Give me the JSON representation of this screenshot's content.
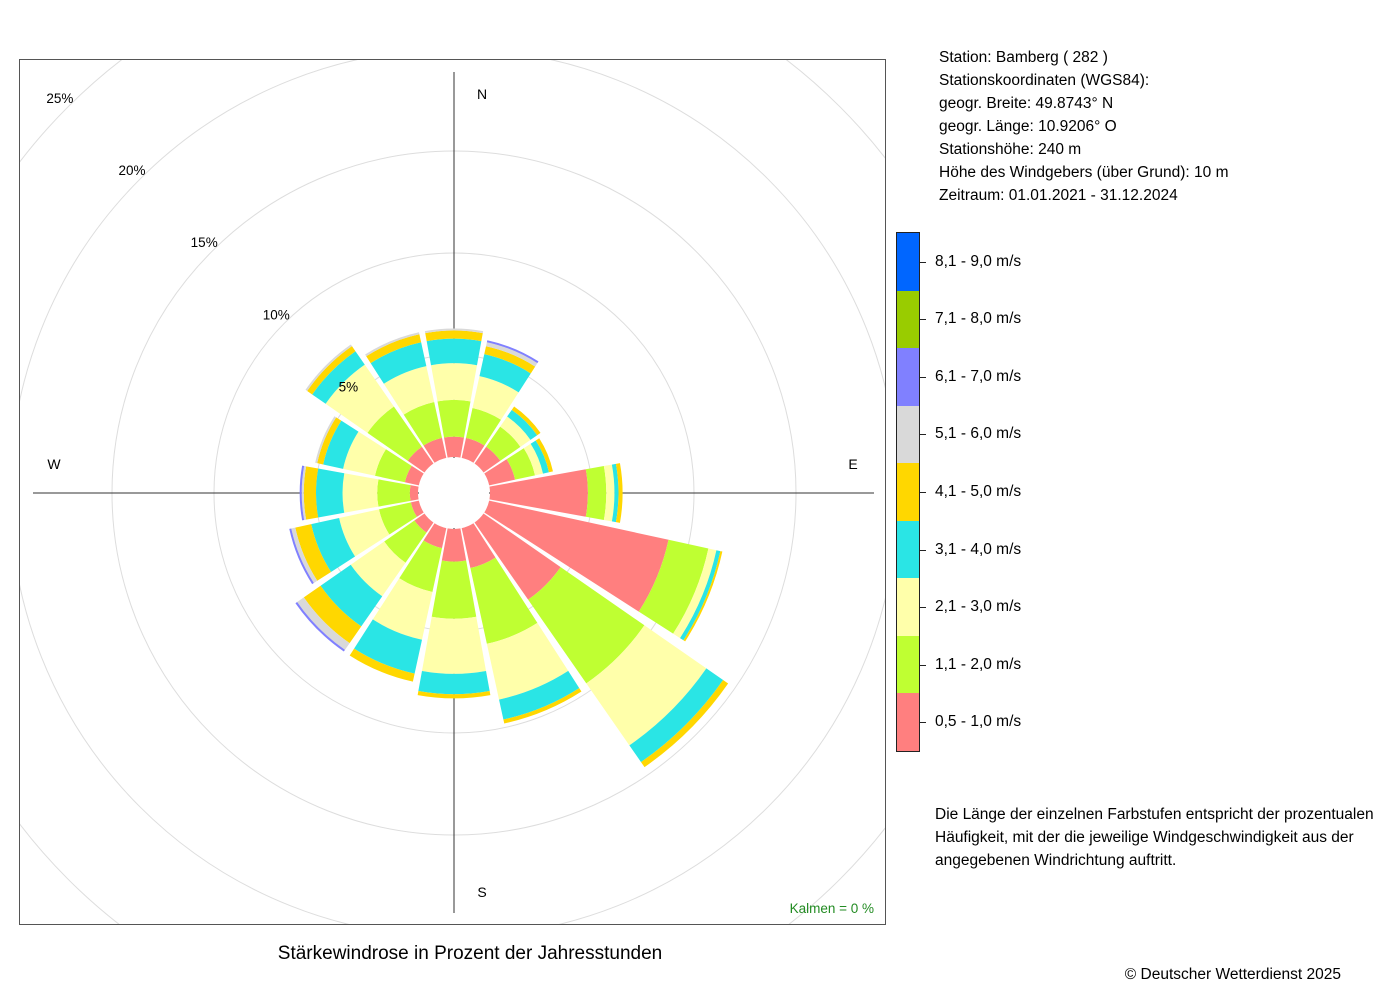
{
  "chart_data": {
    "type": "wind-rose",
    "title": "Stärkewindrose in Prozent der Jahresstunden",
    "directions": [
      "N",
      "NNO",
      "NO",
      "ONO",
      "O",
      "OSO",
      "SO",
      "SSO",
      "S",
      "SSW",
      "SW",
      "WSW",
      "W",
      "WNW",
      "NW",
      "NNW"
    ],
    "compass_labels": [
      "N",
      "E",
      "S",
      "W"
    ],
    "ring_values": [
      5,
      10,
      15,
      20,
      25
    ],
    "ring_labels": [
      "5%",
      "10%",
      "15%",
      "20%",
      "25%"
    ],
    "calm_label": "Kalmen  =  0 %",
    "classes": [
      {
        "label": "0,5 - 1,0 m/s",
        "color": "#ff7f7f"
      },
      {
        "label": "1,1 - 2,0 m/s",
        "color": "#bfff32"
      },
      {
        "label": "2,1 - 3,0 m/s",
        "color": "#ffffaa"
      },
      {
        "label": "3,1 - 4,0 m/s",
        "color": "#2ae5e5"
      },
      {
        "label": "4,1 - 5,0 m/s",
        "color": "#ffd700"
      },
      {
        "label": "5,1 - 6,0 m/s",
        "color": "#d9d9d9"
      },
      {
        "label": "6,1 - 7,0 m/s",
        "color": "#8080ff"
      },
      {
        "label": "7,1 - 8,0 m/s",
        "color": "#99cc00"
      },
      {
        "label": "8,1 - 9,0 m/s",
        "color": "#0066ff"
      }
    ],
    "series": [
      {
        "direction": "N",
        "values": [
          1.0,
          1.8,
          1.8,
          1.2,
          0.4,
          0.1,
          0.0,
          0.0,
          0.0
        ]
      },
      {
        "direction": "NNO",
        "values": [
          1.0,
          1.5,
          1.6,
          1.1,
          0.4,
          0.2,
          0.1,
          0.0,
          0.0
        ]
      },
      {
        "direction": "NO",
        "values": [
          1.0,
          1.2,
          0.6,
          0.4,
          0.2,
          0.0,
          0.0,
          0.0,
          0.0
        ]
      },
      {
        "direction": "ONO",
        "values": [
          1.3,
          1.0,
          0.4,
          0.3,
          0.2,
          0.0,
          0.0,
          0.0,
          0.0
        ]
      },
      {
        "direction": "O",
        "values": [
          4.8,
          0.9,
          0.4,
          0.2,
          0.2,
          0.0,
          0.0,
          0.0,
          0.0
        ]
      },
      {
        "direction": "OSO",
        "values": [
          9.0,
          2.0,
          0.4,
          0.2,
          0.1,
          0.0,
          0.0,
          0.0,
          0.0
        ]
      },
      {
        "direction": "SO",
        "values": [
          4.6,
          5.0,
          3.7,
          1.0,
          0.3,
          0.0,
          0.0,
          0.0,
          0.0
        ]
      },
      {
        "direction": "SSO",
        "values": [
          2.0,
          3.8,
          2.8,
          1.0,
          0.2,
          0.0,
          0.0,
          0.0,
          0.0
        ]
      },
      {
        "direction": "S",
        "values": [
          1.6,
          2.8,
          2.7,
          1.0,
          0.2,
          0.0,
          0.0,
          0.0,
          0.0
        ]
      },
      {
        "direction": "SSW",
        "values": [
          1.0,
          2.2,
          2.4,
          1.7,
          0.4,
          0.0,
          0.0,
          0.0,
          0.0
        ]
      },
      {
        "direction": "SW",
        "values": [
          0.6,
          1.8,
          2.0,
          1.8,
          1.0,
          0.4,
          0.1,
          0.0,
          0.0
        ]
      },
      {
        "direction": "WSW",
        "values": [
          0.4,
          1.6,
          2.0,
          1.4,
          0.8,
          0.2,
          0.1,
          0.0,
          0.0
        ]
      },
      {
        "direction": "W",
        "values": [
          0.4,
          1.6,
          1.7,
          1.3,
          0.6,
          0.1,
          0.1,
          0.0,
          0.0
        ]
      },
      {
        "direction": "WNW",
        "values": [
          0.7,
          1.5,
          1.6,
          1.0,
          0.3,
          0.1,
          0.0,
          0.0,
          0.0
        ]
      },
      {
        "direction": "NW",
        "values": [
          1.0,
          2.4,
          2.5,
          0.8,
          0.3,
          0.1,
          0.0,
          0.0,
          0.0
        ]
      },
      {
        "direction": "NNW",
        "values": [
          1.0,
          1.8,
          1.8,
          1.2,
          0.4,
          0.1,
          0.0,
          0.0,
          0.0
        ]
      }
    ]
  },
  "station_info": {
    "station": "Station:  Bamberg  ( 282 )",
    "coords_heading": "Stationskoordinaten (WGS84):",
    "latitude": "geogr. Breite: 49.8743° N",
    "longitude": "geogr. Länge: 10.9206° O",
    "elevation": "Stationshöhe: 240 m",
    "sensor_height": "Höhe des Windgebers (über Grund): 10 m",
    "period": "Zeitraum: 01.01.2021 - 31.12.2024"
  },
  "note": "Die Länge der einzelnen Farbstufen entspricht der prozentualen Häufigkeit, mit der die jeweilige Windgeschwindigkeit aus der angegebenen Windrichtung auftritt.",
  "copyright": "© Deutscher Wetterdienst  2025"
}
